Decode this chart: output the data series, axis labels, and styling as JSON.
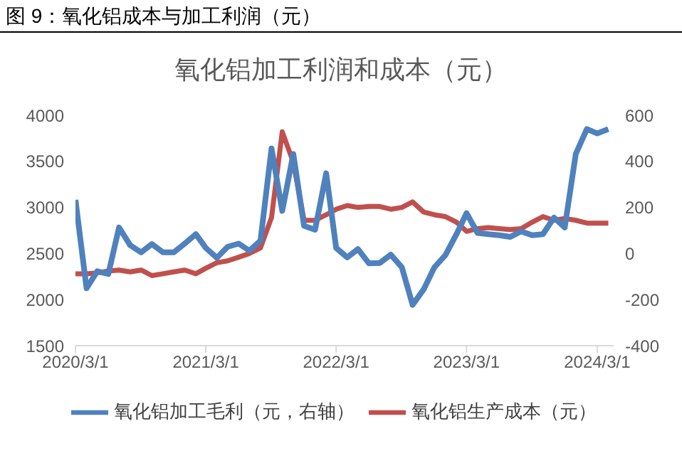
{
  "chart_data": {
    "type": "line",
    "title": "图 9：氧化铝成本与加工利润（元）",
    "subtitle": "氧化铝加工利润和成本（元）",
    "x": [
      "2020-03",
      "2020-04",
      "2020-05",
      "2020-06",
      "2020-07",
      "2020-08",
      "2020-09",
      "2020-10",
      "2020-11",
      "2020-12",
      "2021-01",
      "2021-02",
      "2021-03",
      "2021-04",
      "2021-05",
      "2021-06",
      "2021-07",
      "2021-08",
      "2021-09",
      "2021-10",
      "2021-11",
      "2021-12",
      "2022-01",
      "2022-02",
      "2022-03",
      "2022-04",
      "2022-05",
      "2022-06",
      "2022-07",
      "2022-08",
      "2022-09",
      "2022-10",
      "2022-11",
      "2022-12",
      "2023-01",
      "2023-02",
      "2023-03",
      "2023-04",
      "2023-05",
      "2023-06",
      "2023-07",
      "2023-08",
      "2023-09",
      "2023-10",
      "2023-11",
      "2023-12",
      "2024-01",
      "2024-02",
      "2024-03",
      "2024-04"
    ],
    "series": [
      {
        "name": "氧化铝生产成本（元）",
        "color": "#c0504d",
        "values": [
          2280,
          2280,
          2290,
          2310,
          2320,
          2300,
          2320,
          2260,
          2280,
          2300,
          2320,
          2280,
          2340,
          2400,
          2420,
          2460,
          2500,
          2560,
          2890,
          3820,
          3490,
          2860,
          2860,
          2920,
          2980,
          3020,
          3000,
          3010,
          3010,
          2980,
          3000,
          3060,
          2950,
          2920,
          2900,
          2840,
          2740,
          2770,
          2780,
          2770,
          2760,
          2770,
          2840,
          2900,
          2860,
          2880,
          2860,
          2830,
          2830,
          2830
        ]
      },
      {
        "name": "氧化铝加工毛利（元，右轴）",
        "color": "#4f81bd",
        "axis": "y2",
        "values": [
          233,
          -151,
          -77,
          -89,
          113,
          36,
          5,
          41,
          5,
          5,
          43,
          84,
          24,
          -19,
          29,
          43,
          12,
          55,
          456,
          185,
          432,
          120,
          103,
          348,
          24,
          -17,
          19,
          -43,
          -41,
          -5,
          -60,
          -223,
          -156,
          -60,
          -7,
          84,
          175,
          89,
          84,
          79,
          72,
          96,
          79,
          84,
          156,
          113,
          432,
          540,
          521,
          540
        ]
      }
    ],
    "xlim": [
      "2020-03-01",
      "2024-04-16"
    ],
    "xticks": [
      {
        "value": "2020-03-01",
        "label": "2020/3/1"
      },
      {
        "value": "2021-03-01",
        "label": "2021/3/1"
      },
      {
        "value": "2022-03-01",
        "label": "2022/3/1"
      },
      {
        "value": "2023-03-01",
        "label": "2023/3/1"
      },
      {
        "value": "2024-03-01",
        "label": "2024/3/1"
      }
    ],
    "ylim": [
      1500,
      4000
    ],
    "yticks": [
      1500,
      2000,
      2500,
      3000,
      3500,
      4000
    ],
    "y2lim": [
      -400,
      600
    ],
    "y2ticks": [
      -400,
      -200,
      0,
      200,
      400,
      600
    ],
    "legend": "bottom",
    "grid": false,
    "marker": "none",
    "line_style": "solid"
  }
}
